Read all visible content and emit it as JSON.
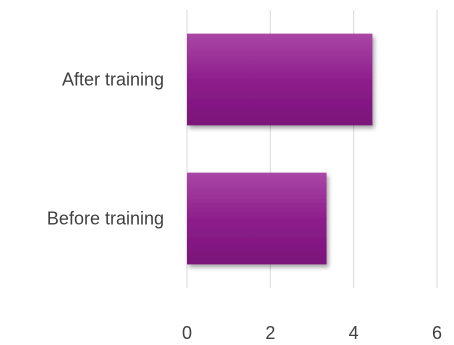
{
  "chart_data": {
    "type": "bar",
    "orientation": "horizontal",
    "categories": [
      "After training",
      "Before training"
    ],
    "values": [
      4.45,
      3.35
    ],
    "title": "",
    "xlabel": "",
    "ylabel": "",
    "xlim": [
      0,
      6
    ],
    "xticks": [
      "0",
      "2",
      "4",
      "6"
    ],
    "grid": true,
    "legend": "none",
    "bar_color": "#8e1f8c",
    "bar_color_light": "#a946a6",
    "bar_color_dark": "#7a127a"
  }
}
